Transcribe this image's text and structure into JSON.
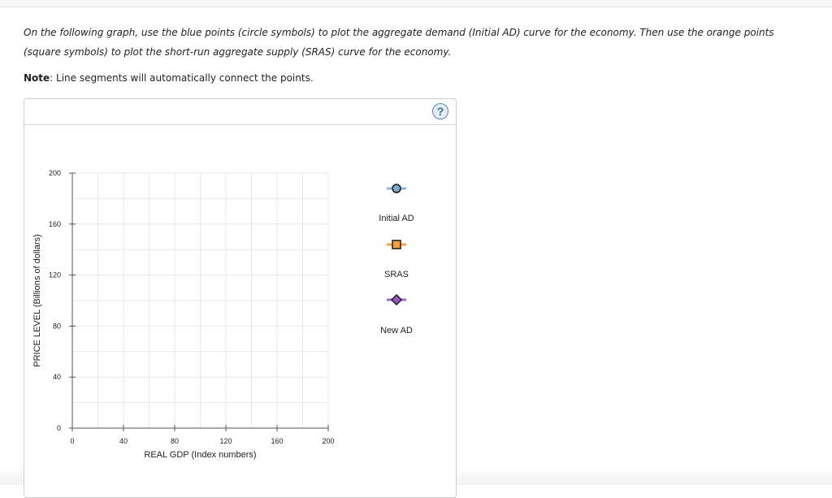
{
  "instructions": {
    "text": "On the following graph, use the blue points (circle symbols) to plot the aggregate demand (Initial AD) curve for the economy. Then use the orange points (square symbols) to plot the short-run aggregate supply (SRAS) curve for the economy.",
    "note_label": "Note",
    "note_text": ": Line segments will automatically connect the points."
  },
  "panel": {
    "help_icon": "question-mark-icon",
    "help_label": "?"
  },
  "chart_data": {
    "type": "line",
    "title": "",
    "xlabel": "REAL GDP (Index numbers)",
    "ylabel": "PRICE LEVEL (Billions of dollars)",
    "xlim": [
      0,
      200
    ],
    "ylim": [
      0,
      200
    ],
    "x_ticks": [
      0,
      40,
      80,
      120,
      160,
      200
    ],
    "y_ticks": [
      0,
      40,
      80,
      120,
      160,
      200
    ],
    "grid": true,
    "grid_step": 20,
    "legend_position": "right",
    "series": [
      {
        "name": "Initial AD",
        "marker": "circle",
        "color": "#7fa6cc",
        "line_color": "#8fb3d6",
        "points": []
      },
      {
        "name": "SRAS",
        "marker": "square",
        "color": "#f5a23c",
        "line_color": "#f5a23c",
        "points": []
      },
      {
        "name": "New AD",
        "marker": "diamond",
        "color": "#9b59c7",
        "line_color": "#a866cf",
        "points": []
      }
    ]
  }
}
